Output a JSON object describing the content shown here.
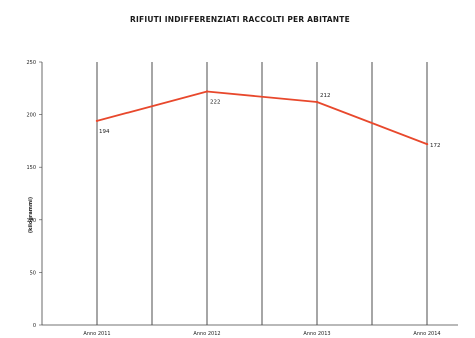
{
  "chart_data": {
    "type": "line",
    "title": "RIFIUTI INDIFFERENZIATI RACCOLTI PER ABITANTE",
    "ylabel": "(kilogrammi)",
    "xlabel": "",
    "categories": [
      "Anno 2011",
      "Anno 2012",
      "Anno 2013",
      "Anno 2014"
    ],
    "series": [
      {
        "values": [
          194,
          222,
          212,
          172
        ],
        "color": "#e8482c"
      }
    ],
    "data_labels": [
      "194",
      "222",
      "212",
      "172"
    ],
    "ylim": [
      0,
      250
    ],
    "yticks": [
      "0",
      "50",
      "100",
      "150",
      "200",
      "250"
    ],
    "grid": "vertical",
    "legend": "none"
  }
}
